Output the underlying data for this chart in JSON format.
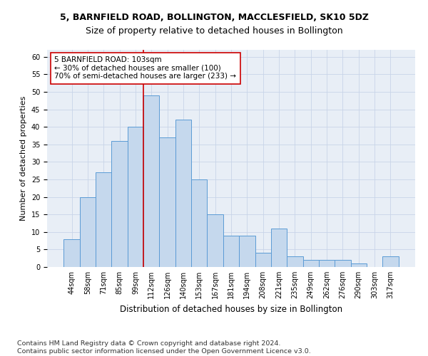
{
  "title": "5, BARNFIELD ROAD, BOLLINGTON, MACCLESFIELD, SK10 5DZ",
  "subtitle": "Size of property relative to detached houses in Bollington",
  "xlabel": "Distribution of detached houses by size in Bollington",
  "ylabel": "Number of detached properties",
  "categories": [
    "44sqm",
    "58sqm",
    "71sqm",
    "85sqm",
    "99sqm",
    "112sqm",
    "126sqm",
    "140sqm",
    "153sqm",
    "167sqm",
    "181sqm",
    "194sqm",
    "208sqm",
    "221sqm",
    "235sqm",
    "249sqm",
    "262sqm",
    "276sqm",
    "290sqm",
    "303sqm",
    "317sqm"
  ],
  "values": [
    8,
    20,
    27,
    36,
    40,
    49,
    37,
    42,
    25,
    15,
    9,
    9,
    4,
    11,
    3,
    2,
    2,
    2,
    1,
    0,
    3
  ],
  "bar_color": "#c5d8ed",
  "bar_edge_color": "#5b9bd5",
  "vline_x_index": 4.5,
  "vline_color": "#cc0000",
  "annotation_line1": "5 BARNFIELD ROAD: 103sqm",
  "annotation_line2": "← 30% of detached houses are smaller (100)",
  "annotation_line3": "70% of semi-detached houses are larger (233) →",
  "annotation_box_color": "#ffffff",
  "annotation_box_edge_color": "#cc0000",
  "ylim": [
    0,
    62
  ],
  "yticks": [
    0,
    5,
    10,
    15,
    20,
    25,
    30,
    35,
    40,
    45,
    50,
    55,
    60
  ],
  "footer_text": "Contains HM Land Registry data © Crown copyright and database right 2024.\nContains public sector information licensed under the Open Government Licence v3.0.",
  "title_fontsize": 9,
  "subtitle_fontsize": 9,
  "annotation_fontsize": 7.5,
  "footer_fontsize": 6.8,
  "ylabel_fontsize": 8,
  "xlabel_fontsize": 8.5,
  "tick_fontsize": 7
}
